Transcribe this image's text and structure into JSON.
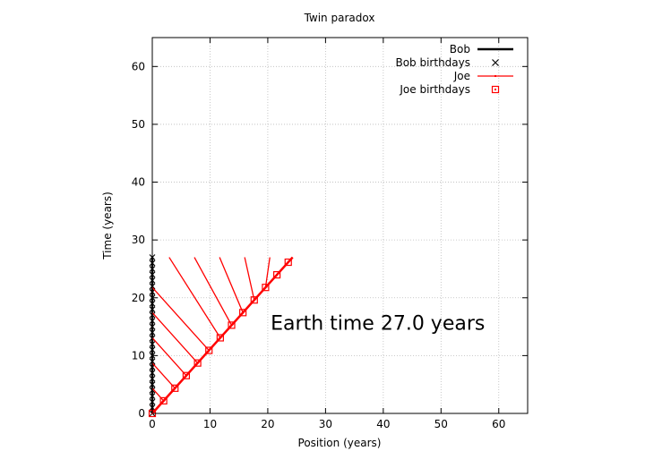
{
  "chart_data": {
    "type": "line",
    "title": "Twin paradox",
    "xlabel": "Position (years)",
    "ylabel": "Time (years)",
    "xlim": [
      0,
      65
    ],
    "ylim": [
      0,
      65
    ],
    "xticks": [
      0,
      10,
      20,
      30,
      40,
      50,
      60
    ],
    "yticks": [
      0,
      10,
      20,
      30,
      40,
      50,
      60
    ],
    "grid": true,
    "legend_position": "top-right",
    "series": [
      {
        "name": "Bob",
        "kind": "line",
        "color": "#000000",
        "points": [
          [
            0,
            0
          ],
          [
            0,
            27
          ]
        ]
      },
      {
        "name": "Bob birthdays",
        "kind": "points",
        "marker": "x",
        "color": "#000000",
        "points": [
          [
            0,
            0
          ],
          [
            0,
            1
          ],
          [
            0,
            2
          ],
          [
            0,
            3
          ],
          [
            0,
            4
          ],
          [
            0,
            5
          ],
          [
            0,
            6
          ],
          [
            0,
            7
          ],
          [
            0,
            8
          ],
          [
            0,
            9
          ],
          [
            0,
            10
          ],
          [
            0,
            11
          ],
          [
            0,
            12
          ],
          [
            0,
            13
          ],
          [
            0,
            14
          ],
          [
            0,
            15
          ],
          [
            0,
            16
          ],
          [
            0,
            17
          ],
          [
            0,
            18
          ],
          [
            0,
            19
          ],
          [
            0,
            20
          ],
          [
            0,
            21
          ],
          [
            0,
            22
          ],
          [
            0,
            23
          ],
          [
            0,
            24
          ],
          [
            0,
            25
          ],
          [
            0,
            26
          ],
          [
            0,
            27
          ]
        ]
      },
      {
        "name": "Joe",
        "kind": "line",
        "color": "#ff0000",
        "points": [
          [
            0,
            0
          ],
          [
            24.3,
            27
          ]
        ]
      },
      {
        "name": "Joe birthdays",
        "kind": "points",
        "marker": "square",
        "color": "#ff0000",
        "points": [
          [
            0,
            0
          ],
          [
            1.96,
            2.18
          ],
          [
            3.92,
            4.36
          ],
          [
            5.88,
            6.54
          ],
          [
            7.85,
            8.72
          ],
          [
            9.81,
            10.9
          ],
          [
            11.77,
            13.08
          ],
          [
            13.73,
            15.26
          ],
          [
            15.69,
            17.44
          ],
          [
            17.65,
            19.62
          ],
          [
            19.61,
            21.79
          ],
          [
            21.58,
            23.97
          ],
          [
            23.54,
            26.15
          ]
        ]
      },
      {
        "name": "",
        "kind": "segments",
        "color": "#ff0000",
        "segments": [
          [
            [
              0,
              4.36
            ],
            [
              1.96,
              2.18
            ]
          ],
          [
            [
              0,
              8.72
            ],
            [
              3.92,
              4.36
            ]
          ],
          [
            [
              0,
              13.08
            ],
            [
              5.88,
              6.54
            ]
          ],
          [
            [
              0,
              17.44
            ],
            [
              7.85,
              8.72
            ]
          ],
          [
            [
              0,
              21.79
            ],
            [
              9.81,
              10.9
            ]
          ],
          [
            [
              2.92,
              27
            ],
            [
              11.77,
              13.08
            ]
          ],
          [
            [
              7.29,
              27
            ],
            [
              13.73,
              15.26
            ]
          ],
          [
            [
              11.65,
              27
            ],
            [
              15.69,
              17.44
            ]
          ],
          [
            [
              16.0,
              27
            ],
            [
              17.65,
              19.62
            ]
          ],
          [
            [
              20.36,
              27
            ],
            [
              19.61,
              21.79
            ]
          ],
          [
            [
              24.3,
              26.9
            ],
            [
              21.58,
              23.97
            ]
          ],
          [
            [
              24.3,
              27
            ],
            [
              23.54,
              26.15
            ]
          ]
        ]
      }
    ],
    "annotations": [
      {
        "text": "Earth time 27.0 years",
        "x": 20.5,
        "y": 14.5
      }
    ]
  }
}
